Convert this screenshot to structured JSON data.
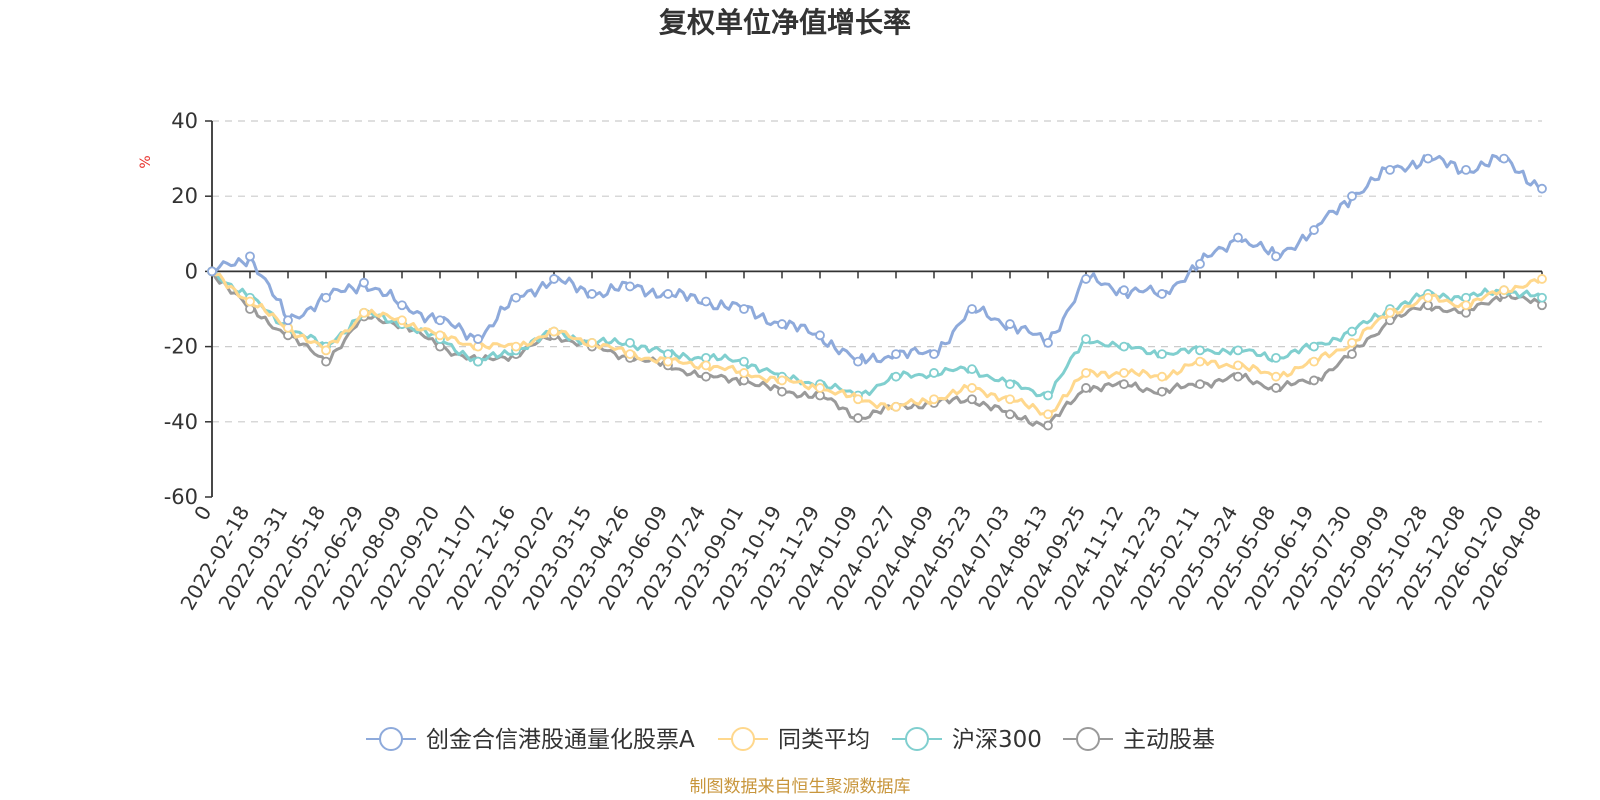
{
  "chart_data": {
    "type": "line",
    "title": "复权单位净值增长率",
    "ylabel": "%",
    "xlabel": "",
    "ylim": [
      -60,
      40
    ],
    "yticks": [
      40,
      20,
      0,
      -20,
      -40,
      -60
    ],
    "x_labels": [
      "0",
      "2022-02-18",
      "2022-03-31",
      "2022-05-18",
      "2022-06-29",
      "2022-08-09",
      "2022-09-20",
      "2022-11-07",
      "2022-12-16",
      "2023-02-02",
      "2023-03-15",
      "2023-04-26",
      "2023-06-09",
      "2023-07-24",
      "2023-09-01",
      "2023-10-19",
      "2023-11-29",
      "2024-01-09",
      "2024-02-27",
      "2024-04-09",
      "2024-05-23",
      "2024-07-03",
      "2024-08-13",
      "2024-09-25",
      "2024-11-12",
      "2024-12-23",
      "2025-02-11",
      "2025-03-24",
      "2025-05-08",
      "2025-06-19",
      "2025-07-30",
      "2025-09-09",
      "2025-10-28",
      "2025-12-08",
      "2026-01-20",
      "2026-04-08"
    ],
    "series": [
      {
        "name": "创金合信港股通量化股票A",
        "color": "#8eaadb",
        "values": [
          0,
          4,
          -13,
          -7,
          -3,
          -9,
          -13,
          -18,
          -7,
          -2,
          -6,
          -4,
          -6,
          -8,
          -10,
          -14,
          -17,
          -24,
          -22,
          -22,
          -10,
          -14,
          -19,
          -2,
          -5,
          -6,
          2,
          9,
          4,
          11,
          20,
          27,
          30,
          27,
          30,
          22
        ]
      },
      {
        "name": "同类平均",
        "color": "#ffd88d",
        "values": [
          0,
          -8,
          -15,
          -21,
          -11,
          -13,
          -17,
          -20,
          -20,
          -16,
          -19,
          -22,
          -24,
          -25,
          -27,
          -29,
          -31,
          -34,
          -36,
          -34,
          -31,
          -34,
          -38,
          -27,
          -27,
          -28,
          -24,
          -25,
          -28,
          -24,
          -19,
          -11,
          -7,
          -9,
          -5,
          -2
        ]
      },
      {
        "name": "沪深300",
        "color": "#80cfcf",
        "values": [
          0,
          -7,
          -15,
          -20,
          -11,
          -14,
          -18,
          -24,
          -21,
          -16,
          -19,
          -19,
          -22,
          -23,
          -24,
          -28,
          -30,
          -33,
          -28,
          -27,
          -26,
          -30,
          -33,
          -18,
          -20,
          -22,
          -21,
          -21,
          -23,
          -20,
          -16,
          -10,
          -6,
          -7,
          -5,
          -7
        ]
      },
      {
        "name": "主动股基",
        "color": "#9a9a9a",
        "values": [
          0,
          -10,
          -17,
          -24,
          -12,
          -14,
          -20,
          -24,
          -22,
          -17,
          -20,
          -23,
          -25,
          -28,
          -29,
          -32,
          -33,
          -39,
          -36,
          -35,
          -34,
          -38,
          -41,
          -31,
          -30,
          -32,
          -30,
          -28,
          -31,
          -29,
          -22,
          -13,
          -9,
          -11,
          -6,
          -9
        ]
      }
    ]
  },
  "source_note": "制图数据来自恒生聚源数据库"
}
